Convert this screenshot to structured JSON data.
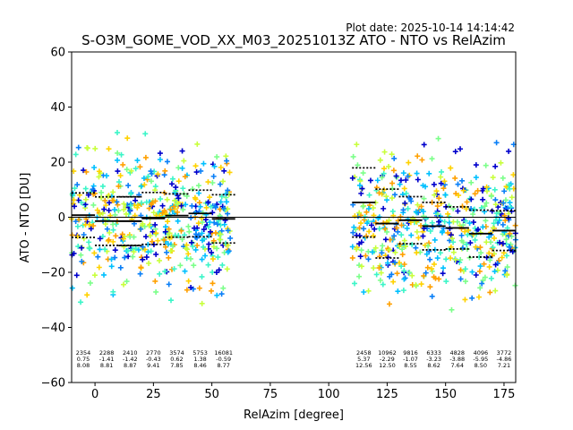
{
  "plot_date": "Plot date: 2025-10-14 14:14:42",
  "chart_data": {
    "type": "scatter",
    "title": "S-O3M_GOME_VOD_XX_M03_20251013Z ATO - NTO vs RelAzim",
    "xlabel": "RelAzim [degree]",
    "ylabel": "ATO - NTO [DU]",
    "xlim": [
      -10,
      180
    ],
    "ylim": [
      -60,
      60
    ],
    "xticks": [
      0,
      25,
      50,
      75,
      100,
      125,
      150,
      175
    ],
    "yticks": [
      -60,
      -40,
      -20,
      0,
      20,
      40,
      60
    ],
    "grid": false,
    "zero_line": 0,
    "scatter_colormap": [
      "#0000cc",
      "#0a7ff7",
      "#00c0ff",
      "#3cf5c8",
      "#7cff8a",
      "#c8ff3c",
      "#ffd200",
      "#ffa000"
    ],
    "scatter_regions": [
      {
        "x_range": [
          -10,
          58
        ],
        "y_center": -1,
        "y_spread": 22
      },
      {
        "x_range": [
          110,
          180
        ],
        "y_center": -3,
        "y_spread": 22
      }
    ],
    "bins": [
      {
        "x_start": -10,
        "x_end": 0,
        "count": "2354",
        "mean": "0.75",
        "std": "8.08"
      },
      {
        "x_start": 0,
        "x_end": 20,
        "count": "2288",
        "mean": "-1.41",
        "std": "8.81"
      },
      {
        "x_start": 10,
        "x_end": 20,
        "count": "2410",
        "mean": "-1.42",
        "std": "8.87"
      },
      {
        "x_start": 20,
        "x_end": 30,
        "count": "2770",
        "mean": "-0.43",
        "std": "9.41"
      },
      {
        "x_start": 30,
        "x_end": 40,
        "count": "3574",
        "mean": "0.62",
        "std": "7.85"
      },
      {
        "x_start": 40,
        "x_end": 50,
        "count": "5753",
        "mean": "1.38",
        "std": "8.46"
      },
      {
        "x_start": 50,
        "x_end": 60,
        "count": "16081",
        "mean": "-0.59",
        "std": "8.77"
      },
      {
        "x_start": 110,
        "x_end": 120,
        "count": "2458",
        "mean": "5.37",
        "std": "12.56"
      },
      {
        "x_start": 120,
        "x_end": 130,
        "count": "10962",
        "mean": "-2.29",
        "std": "12.50"
      },
      {
        "x_start": 130,
        "x_end": 140,
        "count": "9816",
        "mean": "-1.07",
        "std": "8.55"
      },
      {
        "x_start": 140,
        "x_end": 150,
        "count": "6333",
        "mean": "-3.23",
        "std": "8.62"
      },
      {
        "x_start": 150,
        "x_end": 160,
        "count": "4828",
        "mean": "-3.88",
        "std": "7.64"
      },
      {
        "x_start": 160,
        "x_end": 170,
        "count": "4096",
        "mean": "-5.95",
        "std": "8.50"
      },
      {
        "x_start": 170,
        "x_end": 180,
        "count": "3772",
        "mean": "-4.86",
        "std": "7.21"
      }
    ]
  }
}
